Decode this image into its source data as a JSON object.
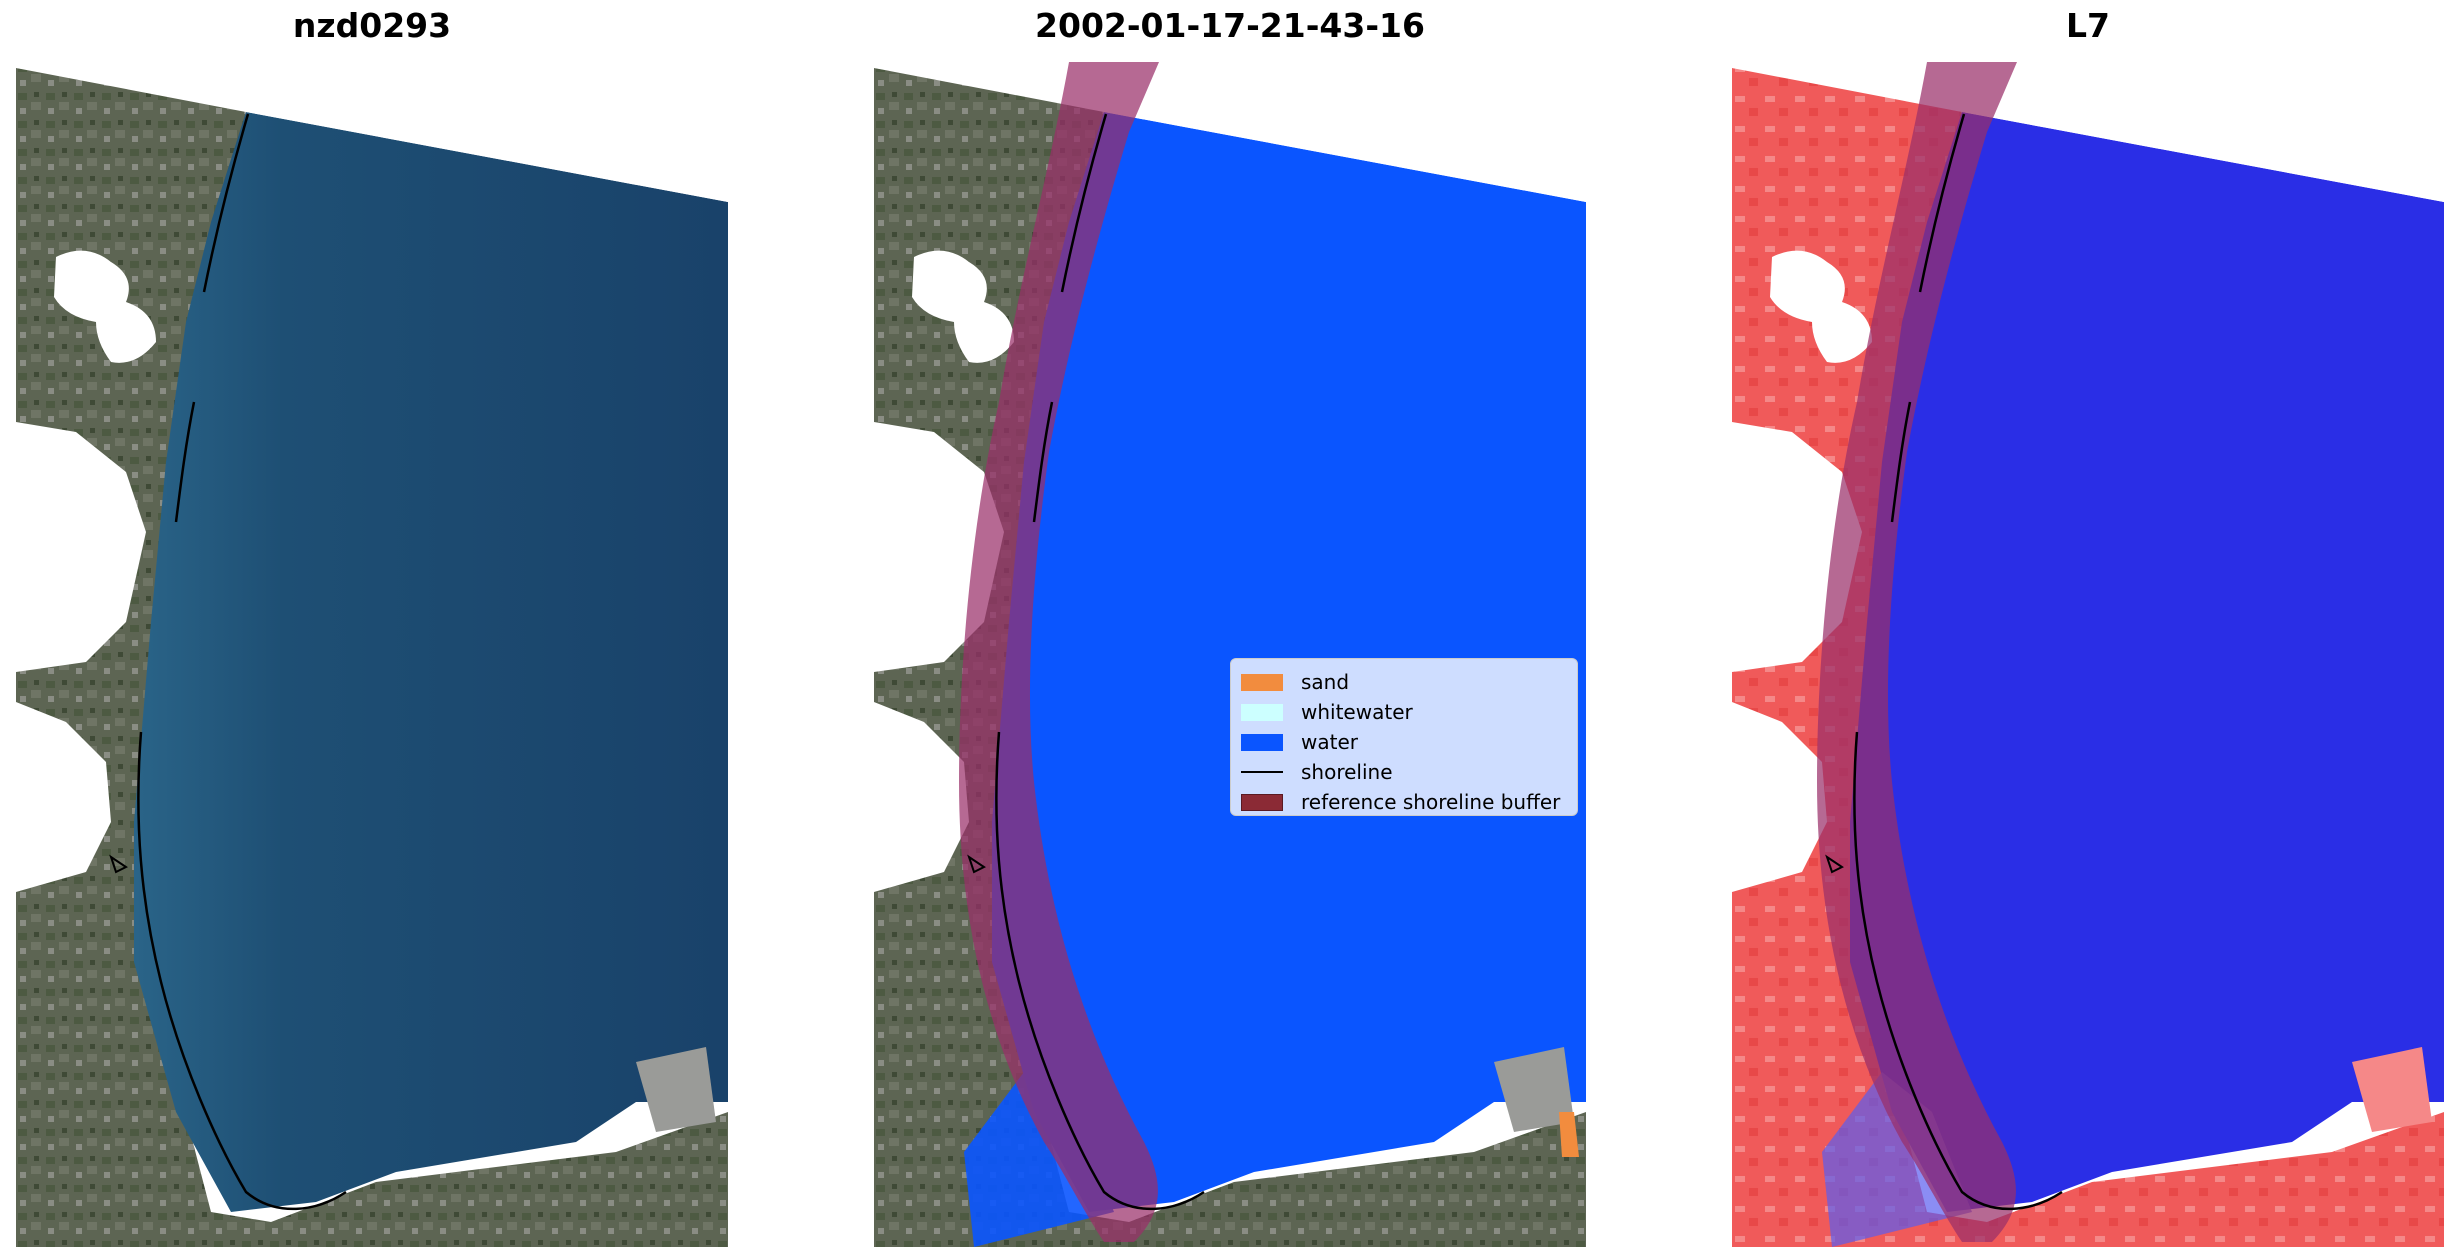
{
  "panels": [
    {
      "title": "nzd0293"
    },
    {
      "title": "2002-01-17-21-43-16"
    },
    {
      "title": "L7"
    }
  ],
  "legend": {
    "items": [
      {
        "label": "sand",
        "color": "#f28c3e",
        "kind": "patch"
      },
      {
        "label": "whitewater",
        "color": "#ccffff",
        "kind": "patch"
      },
      {
        "label": "water",
        "color": "#0a55ff",
        "kind": "patch"
      },
      {
        "label": "shoreline",
        "color": "#000000",
        "kind": "line"
      },
      {
        "label": "reference shoreline buffer",
        "color": "#8b2a35",
        "kind": "patch"
      }
    ]
  },
  "colors": {
    "water_rgb": "#1d4a6e",
    "water_classified": "#0a55ff",
    "buffer": "#9a2f6a",
    "land": "#5b6453",
    "index_land": "#f05a5a",
    "index_water": "#2a2ee6"
  }
}
